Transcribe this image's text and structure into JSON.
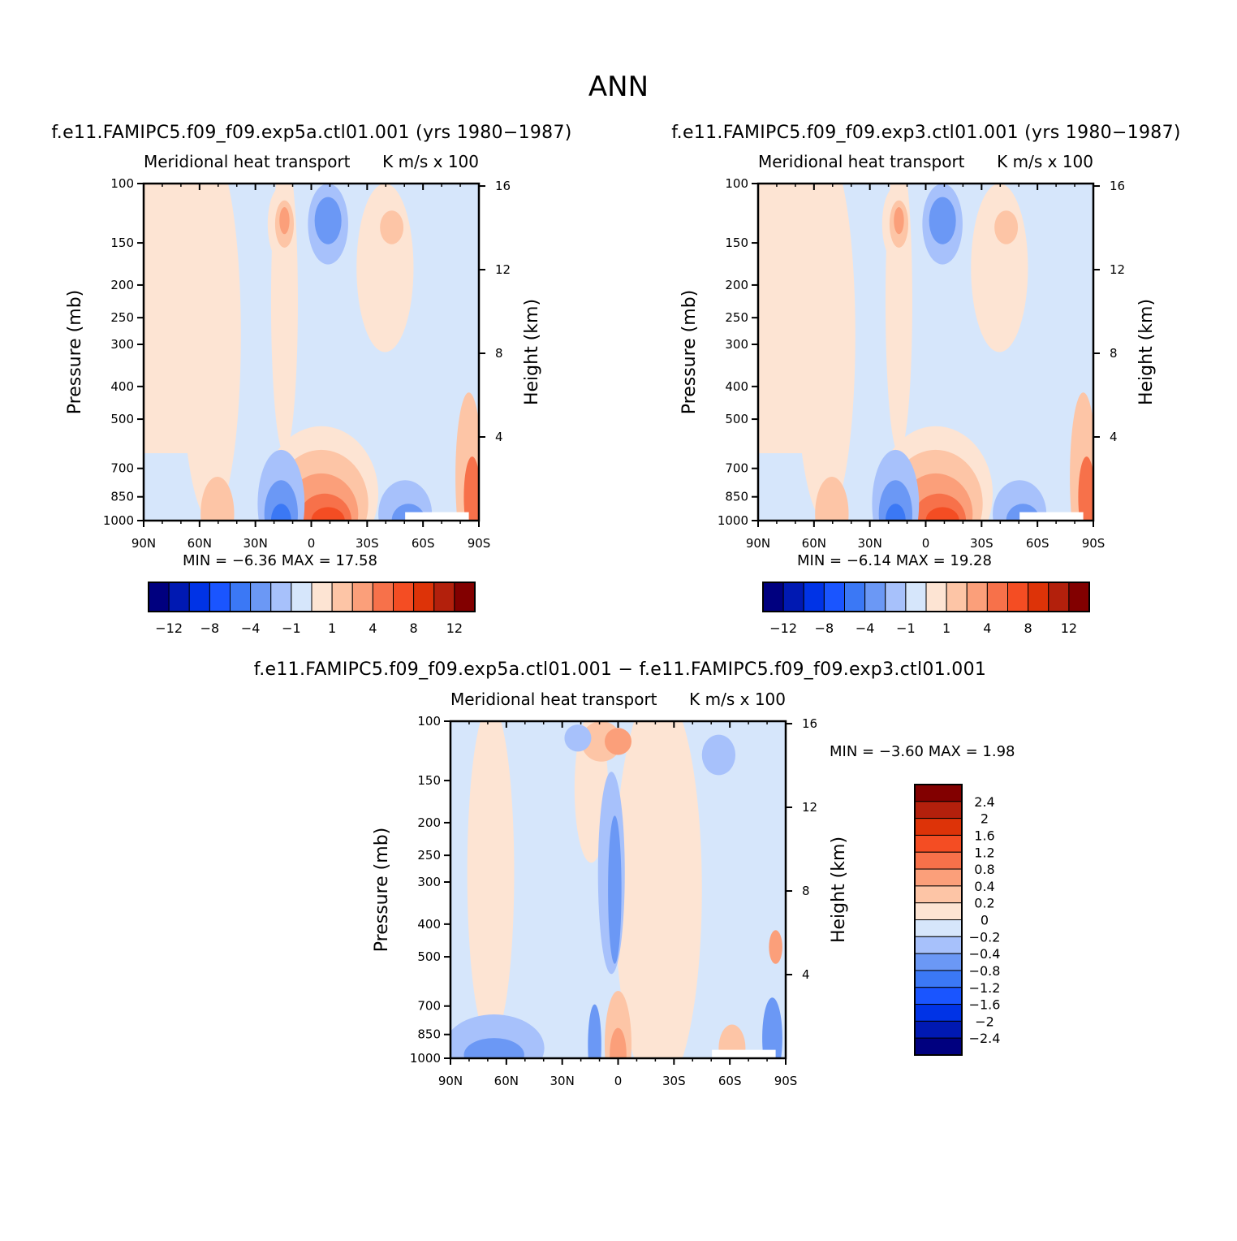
{
  "figure": {
    "title": "ANN",
    "units_note": "K m/s x 100"
  },
  "chart_data": [
    {
      "type": "heatmap",
      "case_title": "f.e11.FAMIPC5.f09_f09.exp5a.ctl01.001 (yrs 1980-1987)",
      "var_title": "Meridional heat transport",
      "units": "K m/s x 100",
      "ylabel": "Pressure (mb)",
      "y2label": "Height (km)",
      "x_ticks": [
        "90N",
        "60N",
        "30N",
        "0",
        "30S",
        "60S",
        "90S"
      ],
      "y_ticks": [
        100,
        150,
        200,
        250,
        300,
        400,
        500,
        700,
        850,
        1000
      ],
      "y2_ticks": [
        16,
        12,
        8,
        4
      ],
      "ylim": [
        1000,
        100
      ],
      "y_scale": "log",
      "min_label": "MIN =",
      "min_value": "-6.36",
      "max_label": "MAX =",
      "max_value": "17.58",
      "colorbar": {
        "orientation": "horizontal",
        "labels": [
          "-12",
          "-8",
          "-4",
          "-1",
          "1",
          "4",
          "8",
          "12"
        ]
      }
    },
    {
      "type": "heatmap",
      "case_title": "f.e11.FAMIPC5.f09_f09.exp3.ctl01.001 (yrs 1980-1987)",
      "var_title": "Meridional heat transport",
      "units": "K m/s x 100",
      "ylabel": "Pressure (mb)",
      "y2label": "Height (km)",
      "x_ticks": [
        "90N",
        "60N",
        "30N",
        "0",
        "30S",
        "60S",
        "90S"
      ],
      "y_ticks": [
        100,
        150,
        200,
        250,
        300,
        400,
        500,
        700,
        850,
        1000
      ],
      "y2_ticks": [
        16,
        12,
        8,
        4
      ],
      "ylim": [
        1000,
        100
      ],
      "y_scale": "log",
      "min_label": "MIN =",
      "min_value": "-6.14",
      "max_label": "MAX =",
      "max_value": "19.28",
      "colorbar": {
        "orientation": "horizontal",
        "labels": [
          "-12",
          "-8",
          "-4",
          "-1",
          "1",
          "4",
          "8",
          "12"
        ]
      }
    },
    {
      "type": "heatmap",
      "case_title": "f.e11.FAMIPC5.f09_f09.exp5a.ctl01.001 - f.e11.FAMIPC5.f09_f09.exp3.ctl01.001",
      "var_title": "Meridional heat transport",
      "units": "K m/s x 100",
      "ylabel": "Pressure (mb)",
      "y2label": "Height (km)",
      "x_ticks": [
        "90N",
        "60N",
        "30N",
        "0",
        "30S",
        "60S",
        "90S"
      ],
      "y_ticks": [
        100,
        150,
        200,
        250,
        300,
        400,
        500,
        700,
        850,
        1000
      ],
      "y2_ticks": [
        16,
        12,
        8,
        4
      ],
      "ylim": [
        1000,
        100
      ],
      "y_scale": "log",
      "min_label": "MIN =",
      "min_value": "-3.60",
      "max_label": "MAX =",
      "max_value": "1.98",
      "colorbar": {
        "orientation": "vertical",
        "labels": [
          "2.4",
          "2",
          "1.6",
          "1.2",
          "0.8",
          "0.4",
          "0.2",
          "0",
          "-0.2",
          "-0.4",
          "-0.8",
          "-1.2",
          "-1.6",
          "-2",
          "-2.4"
        ]
      }
    }
  ],
  "palette": [
    "#00007f",
    "#0019b2",
    "#0033e6",
    "#1a55ff",
    "#3b78f5",
    "#6b98f5",
    "#a7c1fb",
    "#d6e6fb",
    "#fde4d3",
    "#fdc5a6",
    "#fb9f7a",
    "#f7714a",
    "#f44d23",
    "#dd3308",
    "#b3200c",
    "#820000"
  ]
}
